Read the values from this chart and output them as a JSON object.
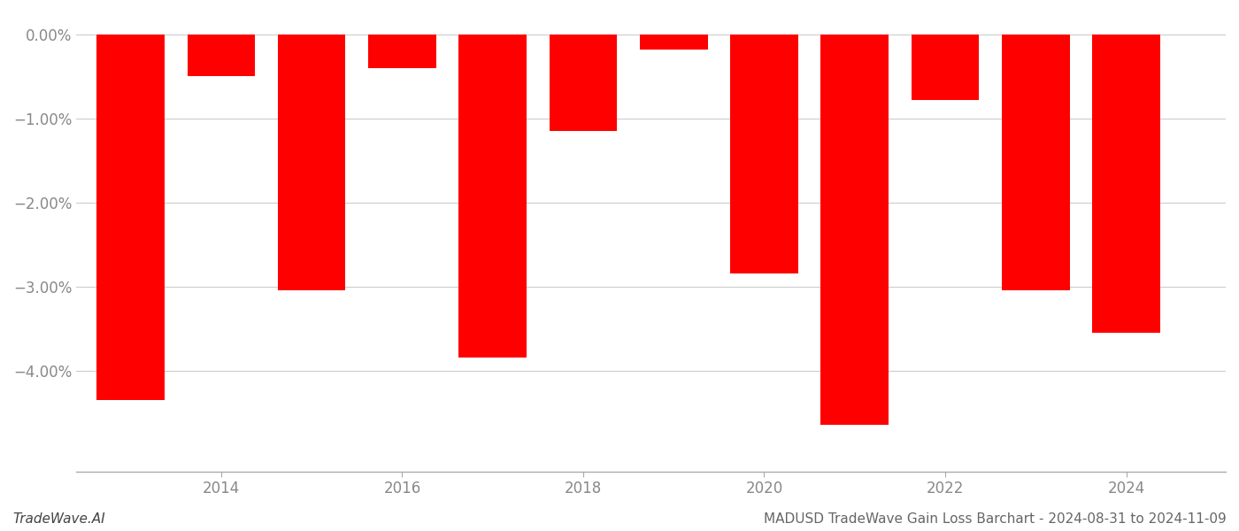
{
  "years": [
    2013,
    2014,
    2015,
    2016,
    2017,
    2018,
    2019,
    2020,
    2021,
    2022,
    2023,
    2024
  ],
  "values": [
    -4.35,
    -0.5,
    -3.05,
    -0.4,
    -3.85,
    -1.15,
    -0.18,
    -2.85,
    -4.65,
    -0.78,
    -3.05,
    -3.55
  ],
  "bar_color": "#ff0000",
  "background_color": "#ffffff",
  "ylabel_color": "#888888",
  "xlabel_color": "#888888",
  "grid_color": "#cccccc",
  "yticks": [
    0.0,
    -1.0,
    -2.0,
    -3.0,
    -4.0
  ],
  "ytick_labels": [
    "0.00%",
    "−1.00%",
    "−2.00%",
    "−3.00%",
    "−4.00%"
  ],
  "ylim": [
    -5.2,
    0.25
  ],
  "xtick_positions": [
    2014,
    2016,
    2018,
    2020,
    2022,
    2024
  ],
  "xlim_left": 2012.4,
  "xlim_right": 2025.1,
  "bar_width": 0.75,
  "footer_left": "TradeWave.AI",
  "footer_right": "MADUSD TradeWave Gain Loss Barchart - 2024-08-31 to 2024-11-09",
  "tick_fontsize": 12,
  "footer_fontsize": 11
}
